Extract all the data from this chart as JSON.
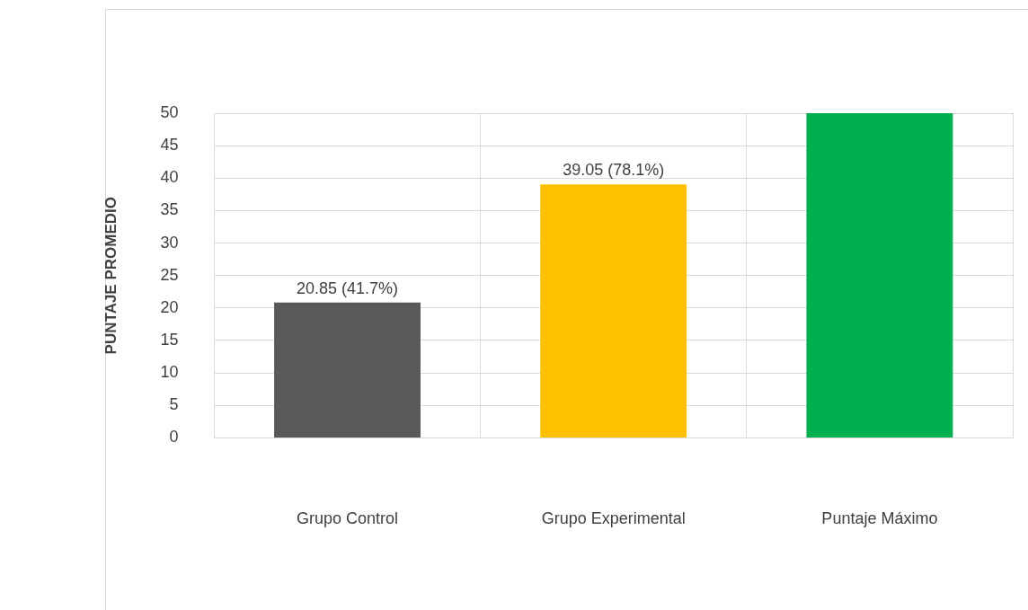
{
  "chart_data": {
    "type": "bar",
    "ylabel": "PUNTAJE PROMEDIO",
    "categories": [
      "Grupo Control",
      "Grupo Experimental",
      "Puntaje Máximo"
    ],
    "values": [
      20.85,
      39.05,
      50
    ],
    "colors": [
      "#595959",
      "#ffc000",
      "#00b050"
    ],
    "value_labels": [
      "20.85 (41.7%)",
      "39.05 (78.1%)",
      null
    ],
    "ylim": [
      0,
      50
    ],
    "yticks": [
      0,
      5,
      10,
      15,
      20,
      25,
      30,
      35,
      40,
      45,
      50
    ],
    "grid": true,
    "legend": false
  }
}
